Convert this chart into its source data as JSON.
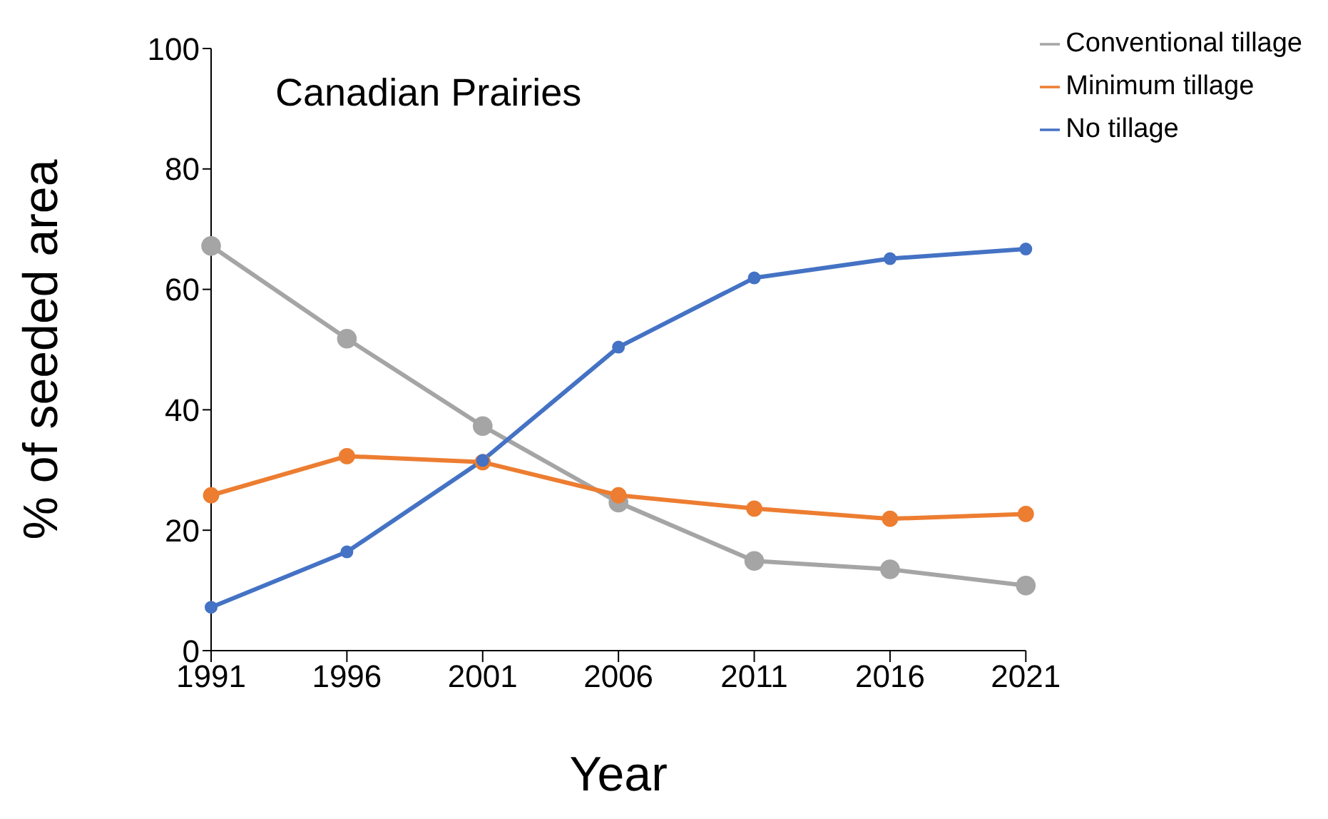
{
  "chart_data": {
    "type": "line",
    "title": "Canadian Prairies",
    "xlabel": "Year",
    "ylabel": "% of seeded area",
    "categories": [
      "1991",
      "1996",
      "2001",
      "2006",
      "2011",
      "2016",
      "2021"
    ],
    "series": [
      {
        "name": "No tillage",
        "color": "#4472c4",
        "values": [
          7.2,
          16.4,
          31.6,
          50.4,
          61.9,
          65.1,
          66.7
        ]
      },
      {
        "name": "Minimum tillage",
        "color": "#ed7d31",
        "values": [
          25.8,
          32.3,
          31.3,
          25.8,
          23.6,
          21.9,
          22.7
        ]
      },
      {
        "name": "Conventional tillage",
        "color": "#a5a5a5",
        "values": [
          67.2,
          51.8,
          37.3,
          24.6,
          14.9,
          13.5,
          10.8
        ]
      }
    ],
    "ylim": [
      0,
      100
    ],
    "yticks": [
      0,
      20,
      40,
      60,
      80,
      100
    ],
    "grid": false,
    "legend": "top right",
    "marker": "circle",
    "line_style": "solid"
  }
}
